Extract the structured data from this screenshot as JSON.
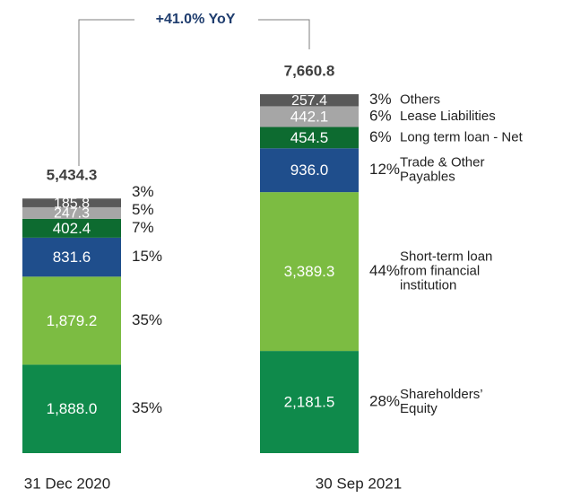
{
  "chart_data": {
    "type": "stacked_bar",
    "annotation": "+41.0% YoY",
    "categories": [
      "31 Dec 2020",
      "30 Sep 2021"
    ],
    "totals": [
      5434.3,
      7660.8
    ],
    "total_labels": [
      "5,434.3",
      "7,660.8"
    ],
    "series": [
      {
        "name": "Shareholders’ Equity",
        "color": "#0f8a4b",
        "values": [
          1888.0,
          2181.5
        ],
        "value_labels": [
          "1,888.0",
          "2,181.5"
        ],
        "percents": [
          35,
          28
        ],
        "percent_labels": [
          "35%",
          "28%"
        ]
      },
      {
        "name": "Short-term loan from financial institution",
        "color": "#7cbc42",
        "values": [
          1879.2,
          3389.3
        ],
        "value_labels": [
          "1,879.2",
          "3,389.3"
        ],
        "percents": [
          35,
          44
        ],
        "percent_labels": [
          "35%",
          "44%"
        ]
      },
      {
        "name": "Trade & Other Payables",
        "color": "#1f4e8c",
        "values": [
          831.6,
          936.0
        ],
        "value_labels": [
          "831.6",
          "936.0"
        ],
        "percents": [
          15,
          12
        ],
        "percent_labels": [
          "15%",
          "12%"
        ]
      },
      {
        "name": "Long term loan - Net",
        "color": "#0d6b30",
        "values": [
          402.4,
          454.5
        ],
        "value_labels": [
          "402.4",
          "454.5"
        ],
        "percents": [
          7,
          6
        ],
        "percent_labels": [
          "7%",
          "6%"
        ]
      },
      {
        "name": "Lease Liabilities",
        "color": "#a6a6a6",
        "values": [
          247.3,
          442.1
        ],
        "value_labels": [
          "247.3",
          "442.1"
        ],
        "percents": [
          5,
          6
        ],
        "percent_labels": [
          "5%",
          "6%"
        ]
      },
      {
        "name": "Others",
        "color": "#595959",
        "values": [
          185.8,
          257.4
        ],
        "value_labels": [
          "185.8",
          "257.4"
        ],
        "percents": [
          3,
          3
        ],
        "percent_labels": [
          "3%",
          "3%"
        ]
      }
    ]
  }
}
